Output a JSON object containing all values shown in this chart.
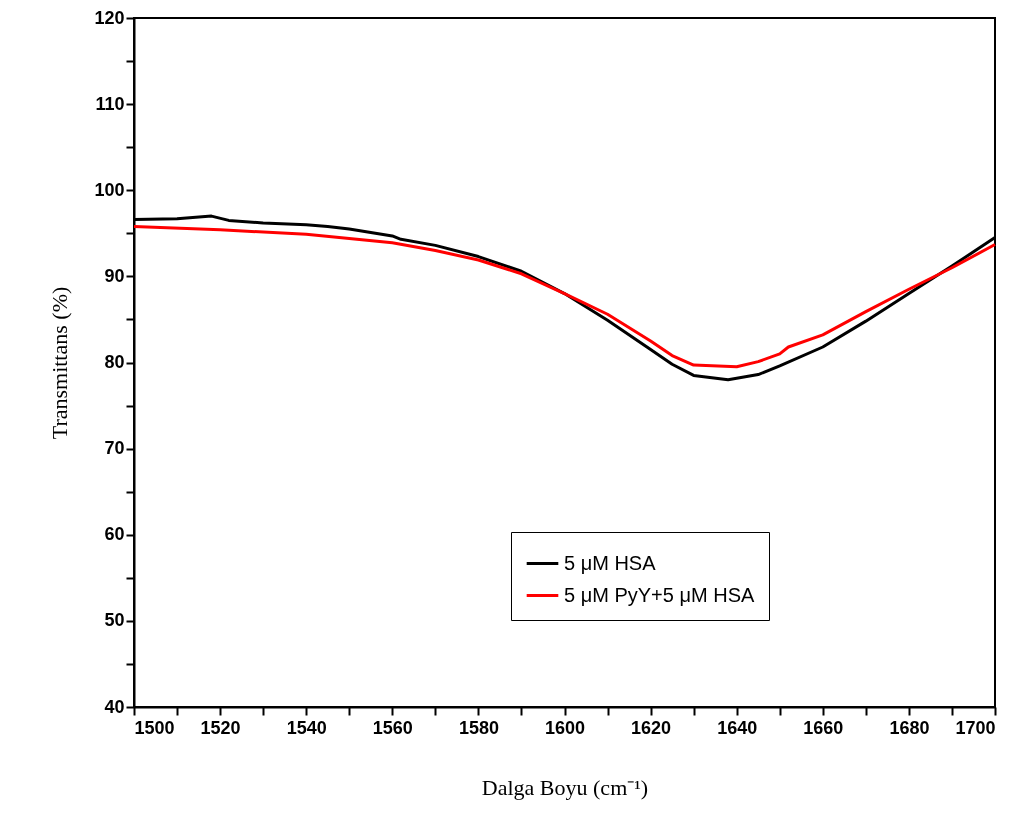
{
  "chart_data": {
    "type": "line",
    "xlabel": "Dalga Boyu (cm⁻¹)",
    "ylabel": "Transmittans (%)",
    "xlim": [
      1500,
      1700
    ],
    "xticks": [
      1500,
      {
        "value": 1510,
        "label": null
      },
      1520,
      {
        "value": 1530,
        "label": null
      },
      1540,
      {
        "value": 1550,
        "label": null
      },
      1560,
      {
        "value": 1570,
        "label": null
      },
      1580,
      {
        "value": 1590,
        "label": null
      },
      1600,
      {
        "value": 1610,
        "label": null
      },
      1620,
      {
        "value": 1630,
        "label": null
      },
      1640,
      {
        "value": 1650,
        "label": null
      },
      1660,
      {
        "value": 1670,
        "label": null
      },
      1680,
      {
        "value": 1690,
        "label": null
      },
      1700
    ],
    "ylim": [
      40,
      120
    ],
    "yticks": [
      40,
      {
        "value": 45,
        "label": null
      },
      50,
      {
        "value": 55,
        "label": null
      },
      60,
      {
        "value": 65,
        "label": null
      },
      70,
      {
        "value": 75,
        "label": null
      },
      80,
      {
        "value": 85,
        "label": null
      },
      90,
      {
        "value": 95,
        "label": null
      },
      100,
      {
        "value": 105,
        "label": null
      },
      110,
      {
        "value": 115,
        "label": null
      },
      120
    ],
    "grid": false,
    "legend": "bottom right",
    "marker": "none",
    "line_style": "solid",
    "series": [
      {
        "name": "5 μM HSA",
        "color": "#000000",
        "x": [
          1500,
          1510,
          1518,
          1522,
          1530,
          1540,
          1545,
          1550,
          1560,
          1562,
          1570,
          1580,
          1590,
          1600,
          1610,
          1620,
          1625,
          1630,
          1638,
          1645,
          1650,
          1660,
          1670,
          1680,
          1690,
          1700
        ],
        "values": [
          96.6,
          96.7,
          97.0,
          96.5,
          96.2,
          96.0,
          95.8,
          95.5,
          94.7,
          94.3,
          93.6,
          92.3,
          90.6,
          88.0,
          84.9,
          81.5,
          79.8,
          78.5,
          78.0,
          78.6,
          79.6,
          81.8,
          84.8,
          88.0,
          91.2,
          94.5
        ]
      },
      {
        "name": "5 μM PyY+5 μM HSA",
        "color": "#ff0000",
        "x": [
          1500,
          1520,
          1540,
          1560,
          1570,
          1580,
          1590,
          1600,
          1610,
          1620,
          1625,
          1630,
          1640,
          1645,
          1650,
          1652,
          1660,
          1670,
          1680,
          1690,
          1700
        ],
        "values": [
          95.8,
          95.4,
          94.9,
          93.9,
          93.0,
          91.9,
          90.3,
          88.0,
          85.6,
          82.5,
          80.8,
          79.7,
          79.5,
          80.1,
          81.0,
          81.8,
          83.2,
          85.9,
          88.5,
          91.0,
          93.7
        ]
      }
    ]
  }
}
